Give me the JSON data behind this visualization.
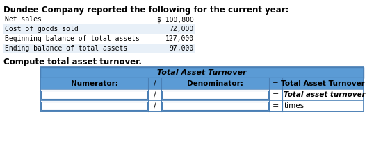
{
  "title": "Dundee Company reported the following for the current year:",
  "data_rows": [
    [
      "Net sales",
      "$ 100,800"
    ],
    [
      "Cost of goods sold",
      "72,000"
    ],
    [
      "Beginning balance of total assets",
      "127,000"
    ],
    [
      "Ending balance of total assets",
      "97,000"
    ]
  ],
  "data_row_shading": [
    false,
    true,
    false,
    true
  ],
  "compute_label": "Compute total asset turnover.",
  "table_title": "Total Asset Turnover",
  "header_row": [
    "Numerator:",
    "/",
    "Denominator:",
    "=",
    "Total Asset Turnover"
  ],
  "row2_label": "Total asset turnover",
  "row3_label": "times",
  "header_bg": "#6baed6",
  "header_bg_dark": "#4a90c4",
  "row_bg_white": "#ffffff",
  "row_bg_light": "#ddeeff",
  "table_header_bg": "#5b9bd5",
  "data_shade_color": "#e8f0f8",
  "font_family": "monospace"
}
